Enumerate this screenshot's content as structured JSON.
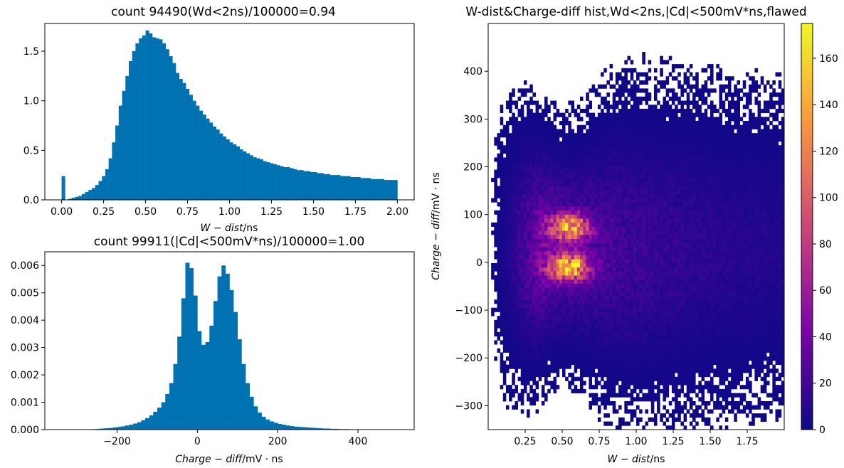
{
  "chart_data": [
    {
      "type": "bar",
      "title": "count 94490(Wd<2ns)/100000=0.94",
      "xlabel_italic": "W − dist",
      "xlabel_unit": "/ns",
      "ylabel": "",
      "xlim": [
        -0.1,
        2.1
      ],
      "ylim": [
        0,
        1.78
      ],
      "xticks": [
        "0.00",
        "0.25",
        "0.50",
        "0.75",
        "1.00",
        "1.25",
        "1.50",
        "1.75",
        "2.00"
      ],
      "yticks": [
        "0.0",
        "0.5",
        "1.0",
        "1.5"
      ],
      "bin_width": 0.02,
      "x": [
        0.01,
        0.03,
        0.05,
        0.07,
        0.09,
        0.11,
        0.13,
        0.15,
        0.17,
        0.19,
        0.21,
        0.23,
        0.25,
        0.27,
        0.29,
        0.31,
        0.33,
        0.35,
        0.37,
        0.39,
        0.41,
        0.43,
        0.45,
        0.47,
        0.49,
        0.51,
        0.53,
        0.55,
        0.57,
        0.59,
        0.61,
        0.63,
        0.65,
        0.67,
        0.69,
        0.71,
        0.73,
        0.75,
        0.77,
        0.79,
        0.81,
        0.83,
        0.85,
        0.87,
        0.89,
        0.91,
        0.93,
        0.95,
        0.97,
        0.99,
        1.01,
        1.03,
        1.05,
        1.07,
        1.09,
        1.11,
        1.13,
        1.15,
        1.17,
        1.19,
        1.21,
        1.23,
        1.25,
        1.27,
        1.29,
        1.31,
        1.33,
        1.35,
        1.37,
        1.39,
        1.41,
        1.43,
        1.45,
        1.47,
        1.49,
        1.51,
        1.53,
        1.55,
        1.57,
        1.59,
        1.61,
        1.63,
        1.65,
        1.67,
        1.69,
        1.71,
        1.73,
        1.75,
        1.77,
        1.79,
        1.81,
        1.83,
        1.85,
        1.87,
        1.89,
        1.91,
        1.93,
        1.95,
        1.97,
        1.99
      ],
      "values": [
        0.24,
        0.0,
        0.01,
        0.02,
        0.03,
        0.04,
        0.06,
        0.08,
        0.1,
        0.12,
        0.15,
        0.19,
        0.24,
        0.31,
        0.42,
        0.58,
        0.75,
        0.95,
        1.1,
        1.25,
        1.4,
        1.5,
        1.58,
        1.63,
        1.66,
        1.71,
        1.68,
        1.64,
        1.63,
        1.62,
        1.58,
        1.52,
        1.45,
        1.38,
        1.28,
        1.22,
        1.18,
        1.12,
        1.06,
        1.0,
        0.95,
        0.9,
        0.86,
        0.82,
        0.78,
        0.74,
        0.71,
        0.67,
        0.64,
        0.61,
        0.58,
        0.56,
        0.54,
        0.51,
        0.49,
        0.47,
        0.45,
        0.43,
        0.42,
        0.41,
        0.39,
        0.38,
        0.37,
        0.36,
        0.35,
        0.34,
        0.33,
        0.33,
        0.32,
        0.31,
        0.3,
        0.3,
        0.29,
        0.29,
        0.28,
        0.28,
        0.27,
        0.27,
        0.26,
        0.26,
        0.25,
        0.25,
        0.25,
        0.24,
        0.24,
        0.24,
        0.23,
        0.23,
        0.23,
        0.22,
        0.22,
        0.22,
        0.21,
        0.21,
        0.21,
        0.21,
        0.2,
        0.2,
        0.2,
        0.2
      ],
      "color": "#0072b2"
    },
    {
      "type": "bar",
      "title": "count 99911(|Cd|<500mV*ns)/100000=1.00",
      "xlabel_italic": "Charge − diff",
      "xlabel_unit": "/mV · ns",
      "ylabel": "",
      "xlim": [
        -380,
        540
      ],
      "ylim": [
        0,
        0.0065
      ],
      "xticks": [
        "−200",
        "0",
        "200",
        "400"
      ],
      "yticks": [
        "0.000",
        "0.001",
        "0.002",
        "0.003",
        "0.004",
        "0.005",
        "0.006"
      ],
      "bin_width": 10,
      "x": [
        -255,
        -245,
        -235,
        -225,
        -215,
        -205,
        -195,
        -185,
        -175,
        -165,
        -155,
        -145,
        -135,
        -125,
        -115,
        -105,
        -95,
        -85,
        -75,
        -65,
        -55,
        -45,
        -35,
        -25,
        -15,
        -5,
        5,
        15,
        25,
        35,
        45,
        55,
        65,
        75,
        85,
        95,
        105,
        115,
        125,
        135,
        145,
        155,
        165,
        175,
        185,
        195,
        205,
        215,
        225,
        235,
        245,
        255,
        265,
        275,
        285,
        295,
        305,
        315,
        325,
        335,
        345,
        355,
        365,
        375,
        385,
        395,
        405
      ],
      "values": [
        2e-05,
        3e-05,
        4e-05,
        5e-05,
        6e-05,
        8e-05,
        0.0001,
        0.00012,
        0.00015,
        0.00018,
        0.00022,
        0.00027,
        0.00034,
        0.00042,
        0.00052,
        0.00065,
        0.0008,
        0.001,
        0.0013,
        0.0017,
        0.0024,
        0.0034,
        0.0048,
        0.0061,
        0.0059,
        0.0049,
        0.0036,
        0.0031,
        0.0032,
        0.0038,
        0.0047,
        0.0056,
        0.006,
        0.0057,
        0.0051,
        0.0043,
        0.0033,
        0.0024,
        0.0017,
        0.0012,
        0.00085,
        0.00062,
        0.00047,
        0.00037,
        0.0003,
        0.00025,
        0.00021,
        0.00018,
        0.00015,
        0.00013,
        0.00011,
        0.0001,
        9e-05,
        8e-05,
        7e-05,
        6e-05,
        5e-05,
        4e-05,
        4e-05,
        3e-05,
        3e-05,
        2e-05,
        2e-05,
        2e-05,
        1e-05,
        1e-05,
        1e-05
      ],
      "color": "#0072b2"
    },
    {
      "type": "heatmap",
      "title": "W-dist&Charge-diff hist,Wd<2ns,|Cd|<500mV*ns,flawed",
      "xlabel_italic": "W − dist",
      "xlabel_unit": "/ns",
      "ylabel_italic": "Charge − diff",
      "ylabel_unit": "/mV · ns",
      "xlim": [
        0.0,
        2.0
      ],
      "ylim": [
        -350,
        500
      ],
      "xticks": [
        "0.25",
        "0.50",
        "0.75",
        "1.00",
        "1.25",
        "1.50",
        "1.75"
      ],
      "yticks": [
        "−300",
        "−200",
        "−100",
        "0",
        "100",
        "200",
        "300",
        "400"
      ],
      "colorbar_ticks": [
        "0",
        "20",
        "40",
        "60",
        "80",
        "100",
        "120",
        "140",
        "160"
      ],
      "colorbar_range": [
        0,
        175
      ],
      "colormap": "plasma",
      "peaks": [
        {
          "x": 0.55,
          "y": 75,
          "count": 150
        },
        {
          "x": 0.55,
          "y": -10,
          "count": 165
        }
      ]
    }
  ]
}
